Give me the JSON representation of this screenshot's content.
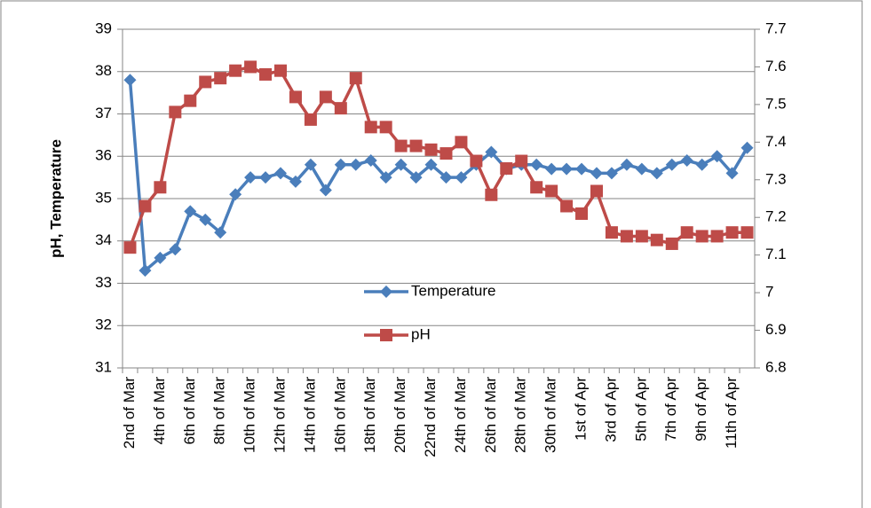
{
  "chart_data": {
    "type": "line",
    "y_label": "pH, Temperature",
    "categories": [
      "2nd of Mar",
      null,
      "4th of Mar",
      null,
      "6th of Mar",
      null,
      "8th of Mar",
      null,
      "10th of Mar",
      null,
      "12th of Mar",
      null,
      "14th of Mar",
      null,
      "16th of Mar",
      null,
      "18th of Mar",
      null,
      "20th of Mar",
      null,
      "22nd of Mar",
      null,
      "24th of Mar",
      null,
      "26th of Mar",
      null,
      "28th of Mar",
      null,
      "30th of Mar",
      null,
      "1st of Apr",
      null,
      "3rd of Apr",
      null,
      "5th of Apr",
      null,
      "7th of Apr",
      null,
      "9th of Apr",
      null,
      "11th of Apr",
      null
    ],
    "series": [
      {
        "name": "Temperature",
        "color": "#4a7ebb",
        "marker": "diamond",
        "values": [
          37.8,
          33.3,
          33.6,
          33.8,
          34.7,
          34.5,
          34.2,
          35.1,
          35.5,
          35.5,
          35.6,
          35.4,
          35.8,
          35.2,
          35.8,
          35.8,
          35.9,
          35.5,
          35.8,
          35.5,
          35.8,
          35.5,
          35.5,
          35.8,
          36.1,
          35.7,
          35.8,
          35.8,
          35.7,
          35.7,
          35.7,
          35.6,
          35.6,
          35.8,
          35.7,
          35.6,
          35.8,
          35.9,
          35.8,
          36.0,
          35.6,
          36.2
        ]
      },
      {
        "name": "pH",
        "color": "#be4b48",
        "marker": "square",
        "axis": "y2",
        "values": [
          7.12,
          7.23,
          7.28,
          7.48,
          7.51,
          7.56,
          7.57,
          7.59,
          7.6,
          7.58,
          7.59,
          7.52,
          7.46,
          7.52,
          7.49,
          7.57,
          7.44,
          7.44,
          7.39,
          7.39,
          7.38,
          7.37,
          7.4,
          7.35,
          7.26,
          7.33,
          7.35,
          7.28,
          7.27,
          7.23,
          7.21,
          7.27,
          7.16,
          7.15,
          7.15,
          7.14,
          7.13,
          7.16,
          7.15,
          7.15,
          7.16,
          7.16
        ]
      }
    ],
    "ylim": [
      31,
      39
    ],
    "yticks": [
      31,
      32,
      33,
      34,
      35,
      36,
      37,
      38,
      39
    ],
    "y2lim": [
      6.8,
      7.7
    ],
    "y2ticks": [
      6.8,
      6.9,
      7,
      7.1,
      7.2,
      7.3,
      7.4,
      7.5,
      7.6,
      7.7
    ],
    "grid": true,
    "legend": "center"
  }
}
